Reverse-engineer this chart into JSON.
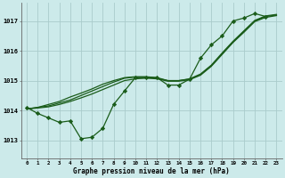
{
  "bg_color": "#cceaea",
  "grid_color": "#aacccc",
  "line_color": "#1a5c1a",
  "ylabel_values": [
    1013,
    1014,
    1015,
    1016,
    1017
  ],
  "xlim": [
    -0.5,
    23.5
  ],
  "ylim": [
    1012.4,
    1017.6
  ],
  "series_with_markers": [
    1014.1,
    1013.9,
    1013.75,
    1013.6,
    1013.65,
    1013.05,
    1013.1,
    1013.4,
    1014.2,
    1014.65,
    1015.1,
    1015.1,
    1015.1,
    1014.85,
    1014.85,
    1015.05,
    1015.75,
    1016.2,
    1016.5,
    1017.0,
    1017.1,
    1017.25,
    1017.15
  ],
  "series_smooth1": [
    1014.05,
    1014.1,
    1014.15,
    1014.25,
    1014.35,
    1014.5,
    1014.65,
    1014.8,
    1014.95,
    1015.08,
    1015.12,
    1015.12,
    1015.08,
    1015.0,
    1015.0,
    1015.05,
    1015.2,
    1015.5,
    1015.9,
    1016.3,
    1016.65,
    1017.0,
    1017.15,
    1017.2
  ],
  "series_smooth2": [
    1014.05,
    1014.1,
    1014.2,
    1014.3,
    1014.45,
    1014.58,
    1014.72,
    1014.88,
    1015.0,
    1015.1,
    1015.13,
    1015.13,
    1015.1,
    1015.0,
    1015.0,
    1015.06,
    1015.22,
    1015.52,
    1015.93,
    1016.32,
    1016.67,
    1017.02,
    1017.17,
    1017.22
  ],
  "series_smooth3": [
    1014.05,
    1014.08,
    1014.12,
    1014.2,
    1014.3,
    1014.42,
    1014.55,
    1014.7,
    1014.85,
    1015.0,
    1015.06,
    1015.08,
    1015.06,
    1014.98,
    1014.98,
    1015.03,
    1015.18,
    1015.48,
    1015.88,
    1016.28,
    1016.62,
    1016.98,
    1017.12,
    1017.18
  ],
  "xlabel": "Graphe pression niveau de la mer (hPa)",
  "xticks": [
    0,
    1,
    2,
    3,
    4,
    5,
    6,
    7,
    8,
    9,
    10,
    11,
    12,
    13,
    14,
    15,
    16,
    17,
    18,
    19,
    20,
    21,
    22,
    23
  ]
}
